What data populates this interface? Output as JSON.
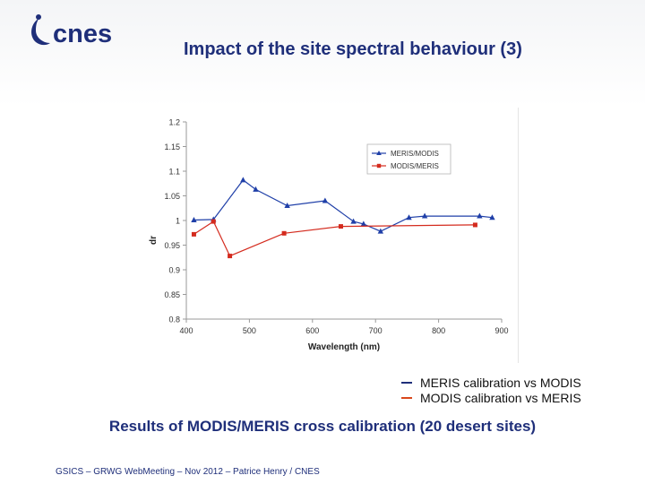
{
  "slide": {
    "logo_text": "cnes",
    "title": "Impact of the site spectral behaviour (3)",
    "caption": "Results of MODIS/MERIS cross calibration (20 desert sites)",
    "footer": "GSICS – GRWG WebMeeting – Nov 2012 – Patrice Henry / CNES",
    "brand_color": "#1f2f7a"
  },
  "calibration_legend": [
    {
      "label": "MERIS calibration vs MODIS",
      "color": "#1f2f7a"
    },
    {
      "label": "MODIS calibration vs MERIS",
      "color": "#d9481c"
    }
  ],
  "chart_data": {
    "type": "line",
    "title": "",
    "xlabel": "Wavelength (nm)",
    "ylabel": "dr",
    "xlim": [
      400,
      900
    ],
    "ylim": [
      0.8,
      1.2
    ],
    "xticks": [
      400,
      500,
      600,
      700,
      800,
      900
    ],
    "yticks": [
      0.8,
      0.85,
      0.9,
      0.95,
      1,
      1.05,
      1.1,
      1.15,
      1.2
    ],
    "ytick_labels": [
      "0.8",
      "0.85",
      "0.9",
      "0.95",
      "1",
      "1.05",
      "1.1",
      "1.15",
      "1.2"
    ],
    "grid": false,
    "legend_position": "top-right",
    "series": [
      {
        "name": "MERIS/MODIS",
        "color": "#1f3fa8",
        "marker": "triangle",
        "x": [
          412,
          443,
          490,
          510,
          560,
          620,
          665,
          681,
          708,
          753,
          778,
          865,
          885
        ],
        "y": [
          1.001,
          1.002,
          1.082,
          1.063,
          1.03,
          1.04,
          0.998,
          0.993,
          0.978,
          1.006,
          1.009,
          1.009,
          1.006
        ]
      },
      {
        "name": "MODIS/MERIS",
        "color": "#d42b1e",
        "marker": "square",
        "x": [
          412,
          443,
          469,
          555,
          645,
          858
        ],
        "y": [
          0.972,
          0.998,
          0.928,
          0.974,
          0.988,
          0.991
        ]
      }
    ]
  }
}
